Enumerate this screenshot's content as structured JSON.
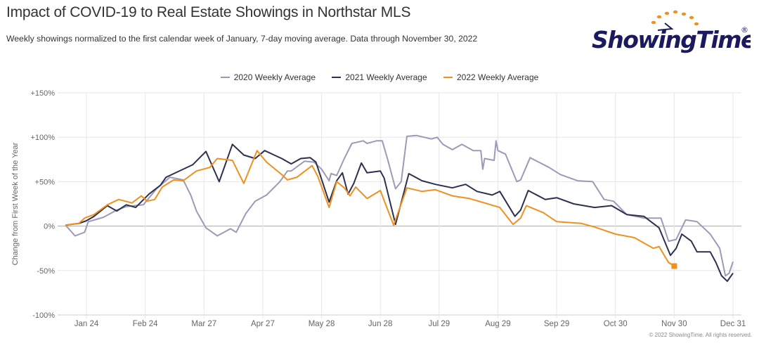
{
  "header": {
    "title": "Impact of COVID-19 to Real Estate Showings in Northstar MLS",
    "subtitle": "Weekly showings normalized to the first calendar week of January, 7-day moving average. Data through November 30, 2022",
    "logo_text": "ShowingTime",
    "logo_mark": "®"
  },
  "footer": {
    "copyright": "© 2022 ShowingTime. All rights reserved."
  },
  "chart_data": {
    "type": "line",
    "title": "Impact of COVID-19 to Real Estate Showings in Northstar MLS",
    "subtitle": "Weekly showings normalized to the first calendar week of January, 7-day moving average. Data through November 30, 2022",
    "xlabel": "",
    "ylabel": "Change from First Week of the Year",
    "ylim": [
      -100,
      150
    ],
    "y_ticks": [
      -100,
      -50,
      0,
      50,
      100,
      150
    ],
    "y_tick_labels": [
      "-100%",
      "-50%",
      "0%",
      "+50%",
      "+100%",
      "+150%"
    ],
    "x_ticks": [
      "Jan 24",
      "Feb 24",
      "Mar 27",
      "Apr 27",
      "May 28",
      "Jun 28",
      "Jul 29",
      "Aug 29",
      "Sep 29",
      "Oct 30",
      "Nov 30",
      "Dec 31"
    ],
    "grid": true,
    "legend_position": "top-center",
    "series": [
      {
        "name": "2020 Weekly Average",
        "color": "#9b9bb8",
        "points": [
          [
            "Jan 13",
            1
          ],
          [
            "Jan 18",
            -11
          ],
          [
            "Jan 23",
            -7
          ],
          [
            "Jan 25",
            5
          ],
          [
            "Feb 2",
            10
          ],
          [
            "Feb 9",
            18
          ],
          [
            "Feb 14",
            22
          ],
          [
            "Feb 23",
            24
          ],
          [
            "Mar 2",
            42
          ],
          [
            "Mar 9",
            55
          ],
          [
            "Mar 16",
            52
          ],
          [
            "Mar 20",
            35
          ],
          [
            "Mar 23",
            17
          ],
          [
            "Mar 28",
            -2
          ],
          [
            "Apr 3",
            -11
          ],
          [
            "Apr 10",
            -3
          ],
          [
            "Apr 13",
            -7
          ],
          [
            "Apr 18",
            14
          ],
          [
            "Apr 23",
            28
          ],
          [
            "Apr 29",
            35
          ],
          [
            "May 6",
            50
          ],
          [
            "May 10",
            62
          ],
          [
            "May 12",
            62
          ],
          [
            "May 19",
            73
          ],
          [
            "May 24",
            72
          ],
          [
            "May 28",
            64
          ],
          [
            "Jun 1",
            51
          ],
          [
            "Jun 2",
            59
          ],
          [
            "Jun 5",
            57
          ],
          [
            "Jun 9",
            76
          ],
          [
            "Jun 13",
            93
          ],
          [
            "Jun 19",
            96
          ],
          [
            "Jun 21",
            93
          ],
          [
            "Jun 26",
            96
          ],
          [
            "Jun 29",
            96
          ],
          [
            "Jul 2",
            74
          ],
          [
            "Jul 6",
            42
          ],
          [
            "Jul 9",
            50
          ],
          [
            "Jul 12",
            101
          ],
          [
            "Jul 17",
            102
          ],
          [
            "Jul 25",
            98
          ],
          [
            "Jul 28",
            100
          ],
          [
            "Jul 31",
            92
          ],
          [
            "Aug 5",
            86
          ],
          [
            "Aug 10",
            92
          ],
          [
            "Aug 16",
            85
          ],
          [
            "Aug 20",
            85
          ],
          [
            "Aug 21",
            64
          ],
          [
            "Aug 22",
            76
          ],
          [
            "Aug 27",
            74
          ],
          [
            "Aug 28",
            96
          ],
          [
            "Aug 29",
            85
          ],
          [
            "Sep 2",
            81
          ],
          [
            "Sep 8",
            50
          ],
          [
            "Sep 10",
            52
          ],
          [
            "Sep 15",
            77
          ],
          [
            "Sep 25",
            66
          ],
          [
            "Oct 1",
            58
          ],
          [
            "Oct 10",
            51
          ],
          [
            "Oct 18",
            50
          ],
          [
            "Oct 24",
            30
          ],
          [
            "Oct 29",
            28
          ],
          [
            "Nov 5",
            13
          ],
          [
            "Nov 14",
            9
          ],
          [
            "Nov 23",
            9
          ],
          [
            "Nov 27",
            -17
          ],
          [
            "Dec 1",
            -15
          ],
          [
            "Dec 6",
            7
          ],
          [
            "Dec 12",
            5
          ],
          [
            "Dec 19",
            -9
          ],
          [
            "Dec 24",
            -25
          ],
          [
            "Dec 27",
            -56
          ],
          [
            "Dec 29",
            -53
          ],
          [
            "Dec 31",
            -40
          ]
        ]
      },
      {
        "name": "2021 Weekly Average",
        "color": "#2c3150",
        "points": [
          [
            "Jan 13",
            1
          ],
          [
            "Jan 20",
            3
          ],
          [
            "Jan 24",
            6
          ],
          [
            "Jan 28",
            11
          ],
          [
            "Feb 4",
            23
          ],
          [
            "Feb 9",
            17
          ],
          [
            "Feb 14",
            24
          ],
          [
            "Feb 19",
            21
          ],
          [
            "Feb 26",
            36
          ],
          [
            "Mar 4",
            46
          ],
          [
            "Mar 7",
            55
          ],
          [
            "Mar 13",
            61
          ],
          [
            "Mar 21",
            69
          ],
          [
            "Mar 28",
            84
          ],
          [
            "Apr 4",
            50
          ],
          [
            "Apr 11",
            92
          ],
          [
            "Apr 17",
            80
          ],
          [
            "Apr 23",
            76
          ],
          [
            "Apr 28",
            85
          ],
          [
            "May 3",
            80
          ],
          [
            "May 7",
            76
          ],
          [
            "May 12",
            70
          ],
          [
            "May 17",
            76
          ],
          [
            "May 22",
            77
          ],
          [
            "May 25",
            72
          ],
          [
            "Jun 1",
            27
          ],
          [
            "Jun 5",
            51
          ],
          [
            "Jun 8",
            60
          ],
          [
            "Jun 11",
            36
          ],
          [
            "Jun 14",
            48
          ],
          [
            "Jun 18",
            71
          ],
          [
            "Jun 21",
            60
          ],
          [
            "Jun 28",
            62
          ],
          [
            "Jun 30",
            54
          ],
          [
            "Jul 6",
            2
          ],
          [
            "Jul 13",
            59
          ],
          [
            "Jul 20",
            51
          ],
          [
            "Jul 27",
            47
          ],
          [
            "Aug 5",
            43
          ],
          [
            "Aug 12",
            47
          ],
          [
            "Aug 18",
            39
          ],
          [
            "Aug 26",
            35
          ],
          [
            "Aug 30",
            39
          ],
          [
            "Sep 7",
            11
          ],
          [
            "Sep 10",
            18
          ],
          [
            "Sep 14",
            40
          ],
          [
            "Sep 23",
            30
          ],
          [
            "Sep 29",
            32
          ],
          [
            "Oct 8",
            25
          ],
          [
            "Oct 19",
            21
          ],
          [
            "Oct 28",
            23
          ],
          [
            "Nov 5",
            13
          ],
          [
            "Nov 14",
            11
          ],
          [
            "Nov 22",
            -2
          ],
          [
            "Nov 28",
            -33
          ],
          [
            "Dec 1",
            -25
          ],
          [
            "Dec 4",
            -9
          ],
          [
            "Dec 9",
            -17
          ],
          [
            "Dec 12",
            -29
          ],
          [
            "Dec 19",
            -29
          ],
          [
            "Dec 22",
            -41
          ],
          [
            "Dec 25",
            -56
          ],
          [
            "Dec 28",
            -62
          ],
          [
            "Dec 31",
            -53
          ]
        ]
      },
      {
        "name": "2022 Weekly Average",
        "color": "#f0901e",
        "points": [
          [
            "Jan 13",
            1
          ],
          [
            "Jan 20",
            3
          ],
          [
            "Jan 23",
            9
          ],
          [
            "Jan 28",
            13
          ],
          [
            "Feb 4",
            24
          ],
          [
            "Feb 10",
            30
          ],
          [
            "Feb 17",
            26
          ],
          [
            "Feb 22",
            34
          ],
          [
            "Feb 25",
            28
          ],
          [
            "Mar 1",
            30
          ],
          [
            "Mar 5",
            44
          ],
          [
            "Mar 11",
            52
          ],
          [
            "Mar 16",
            51
          ],
          [
            "Mar 23",
            62
          ],
          [
            "Mar 30",
            66
          ],
          [
            "Apr 3",
            76
          ],
          [
            "Apr 11",
            74
          ],
          [
            "Apr 17",
            48
          ],
          [
            "Apr 24",
            85
          ],
          [
            "Apr 29",
            72
          ],
          [
            "May 7",
            58
          ],
          [
            "May 10",
            52
          ],
          [
            "May 15",
            55
          ],
          [
            "May 23",
            68
          ],
          [
            "May 26",
            56
          ],
          [
            "Jun 1",
            21
          ],
          [
            "Jun 5",
            50
          ],
          [
            "Jun 9",
            43
          ],
          [
            "Jun 12",
            34
          ],
          [
            "Jun 15",
            44
          ],
          [
            "Jun 21",
            31
          ],
          [
            "Jun 28",
            40
          ],
          [
            "Jul 5",
            1
          ],
          [
            "Jul 12",
            43
          ],
          [
            "Jul 20",
            39
          ],
          [
            "Jul 27",
            41
          ],
          [
            "Aug 5",
            34
          ],
          [
            "Aug 14",
            31
          ],
          [
            "Aug 22",
            26
          ],
          [
            "Aug 30",
            21
          ],
          [
            "Sep 6",
            2
          ],
          [
            "Sep 10",
            9
          ],
          [
            "Sep 13",
            23
          ],
          [
            "Sep 22",
            15
          ],
          [
            "Sep 29",
            5
          ],
          [
            "Oct 12",
            3
          ],
          [
            "Oct 19",
            -1
          ],
          [
            "Oct 30",
            -9
          ],
          [
            "Nov 9",
            -13
          ],
          [
            "Nov 19",
            -25
          ],
          [
            "Nov 22",
            -23
          ],
          [
            "Nov 27",
            -41
          ],
          [
            "Nov 30",
            -45
          ]
        ],
        "end_marker": true
      }
    ]
  }
}
